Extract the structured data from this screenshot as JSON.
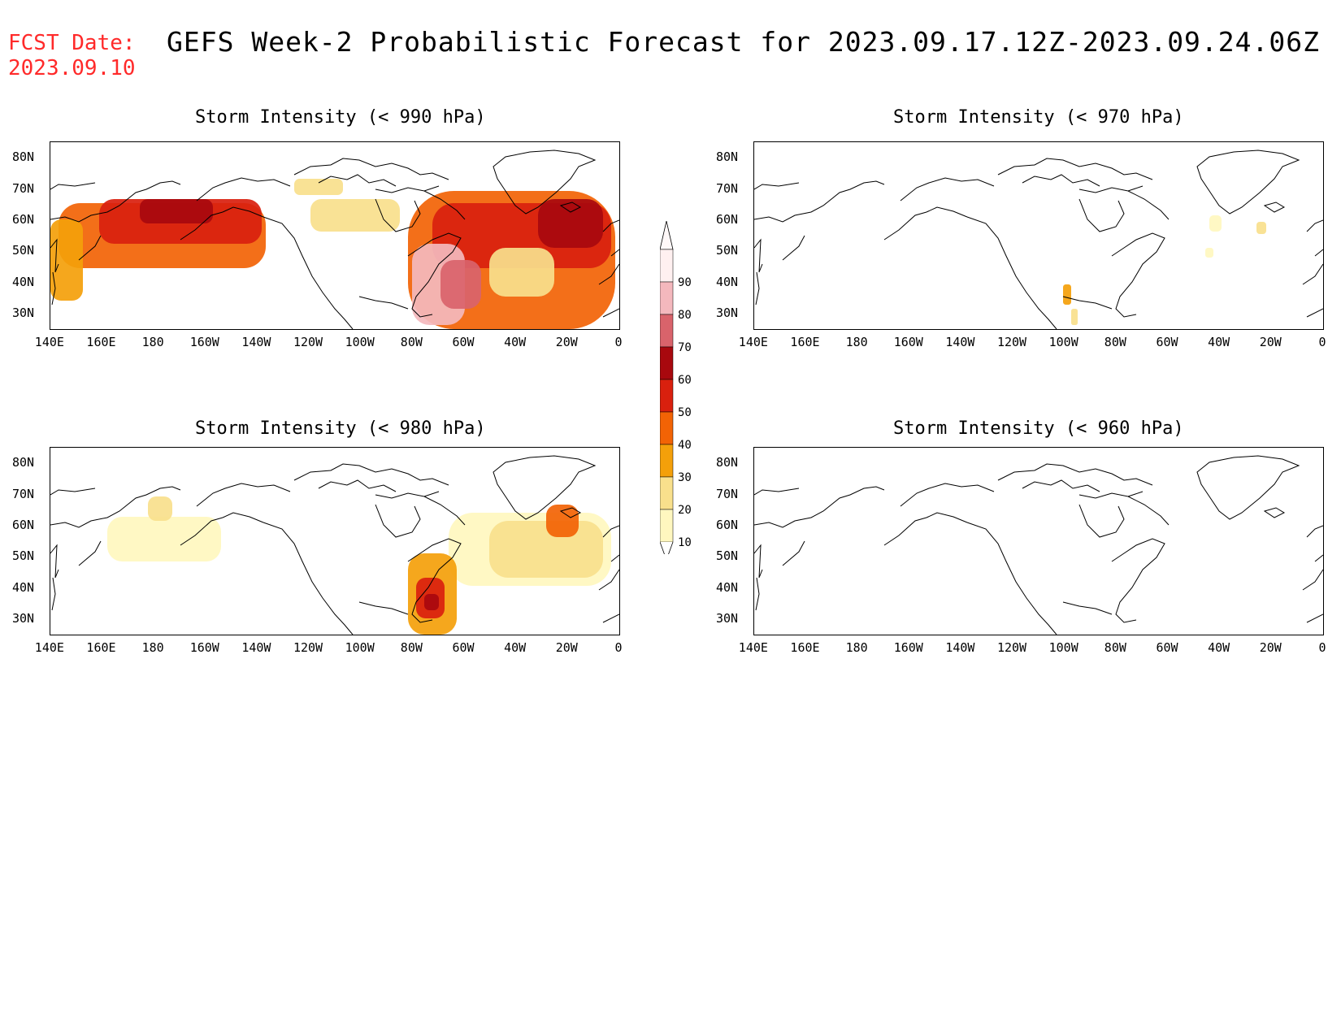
{
  "header": {
    "fcst_label": "FCST Date:",
    "fcst_date": "2023.09.10",
    "title": "GEFS Week-2 Probabilistic Forecast for 2023.09.17.12Z-2023.09.24.06Z"
  },
  "lat_labels": [
    "80N",
    "70N",
    "60N",
    "50N",
    "40N",
    "30N"
  ],
  "lon_labels": [
    "140E",
    "160E",
    "180",
    "160W",
    "140W",
    "120W",
    "100W",
    "80W",
    "60W",
    "40W",
    "20W",
    "0"
  ],
  "panels": [
    {
      "id": "p990",
      "title": "Storm Intensity (< 990 hPa)",
      "intensity": "high"
    },
    {
      "id": "p970",
      "title": "Storm Intensity (< 970 hPa)",
      "intensity": "trace"
    },
    {
      "id": "p980",
      "title": "Storm Intensity (< 980 hPa)",
      "intensity": "moderate"
    },
    {
      "id": "p960",
      "title": "Storm Intensity (< 960 hPa)",
      "intensity": "none"
    }
  ],
  "colorbar": {
    "labels": [
      "90",
      "80",
      "70",
      "60",
      "50",
      "40",
      "30",
      "20",
      "10"
    ],
    "colors": [
      "#fff0f0",
      "#f4b8bd",
      "#d9636b",
      "#a8080e",
      "#d9200e",
      "#f26305",
      "#f4a00a",
      "#f9e08c",
      "#fff7bf"
    ]
  }
}
